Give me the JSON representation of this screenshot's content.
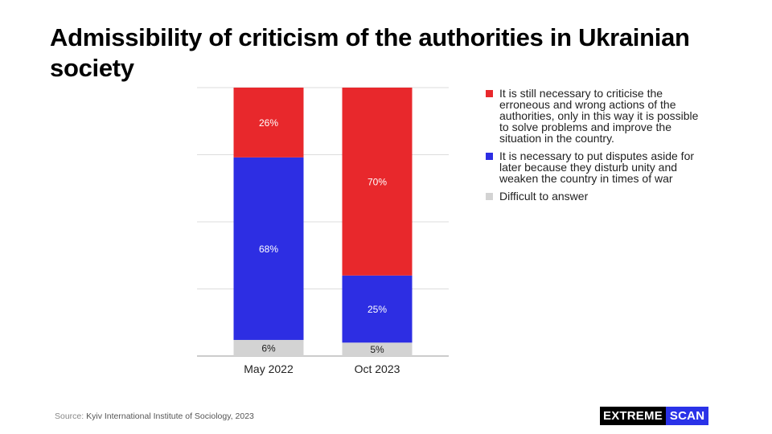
{
  "title": "Admissibility of criticism of the authorities in Ukrainian society",
  "source": {
    "label": "Source:",
    "text": "Kyiv International Institute of Sociology, 2023"
  },
  "logo": {
    "part1": "EXTREME",
    "part2": "SCAN"
  },
  "chart_data": {
    "type": "bar",
    "stacked": true,
    "categories": [
      "May 2022",
      "Oct 2023"
    ],
    "series": [
      {
        "name": "Difficult to answer",
        "values": [
          6,
          5
        ],
        "labels": [
          "6%",
          "5%"
        ],
        "color": "#d3d3d3",
        "label_color": "#222222"
      },
      {
        "name": "It is necessary to put disputes aside for later because they disturb unity and weaken the country in times of war",
        "values": [
          68,
          25
        ],
        "labels": [
          "68%",
          "25%"
        ],
        "color": "#2d2ee3",
        "label_color": "#ffffff"
      },
      {
        "name": "It is still necessary to criticise the erroneous and wrong actions of the authorities, only in this way it is possible to solve problems and improve the situation in the country.",
        "values": [
          26,
          70
        ],
        "labels": [
          "26%",
          "70%"
        ],
        "color": "#e8282c",
        "label_color": "#ffffff"
      }
    ],
    "ylim": [
      0,
      100
    ],
    "grid": true,
    "legend_position": "right"
  }
}
